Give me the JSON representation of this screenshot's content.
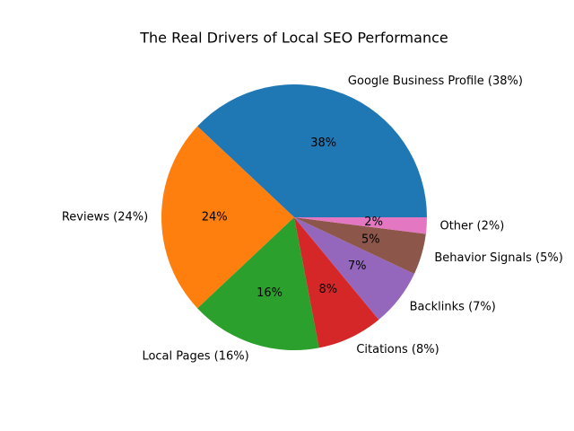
{
  "chart_data": {
    "type": "pie",
    "title": "The Real Drivers of Local SEO Performance",
    "categories": [
      "Google Business Profile (38%)",
      "Reviews (24%)",
      "Local Pages (16%)",
      "Citations (8%)",
      "Backlinks (7%)",
      "Behavior Signals (5%)",
      "Other (2%)"
    ],
    "values": [
      38,
      24,
      16,
      8,
      7,
      5,
      2
    ],
    "value_labels": [
      "38%",
      "24%",
      "16%",
      "8%",
      "7%",
      "5%",
      "2%"
    ],
    "colors": [
      "#1f77b4",
      "#ff7f0e",
      "#2ca02c",
      "#d62728",
      "#9467bd",
      "#8c564b",
      "#e377c2"
    ]
  }
}
